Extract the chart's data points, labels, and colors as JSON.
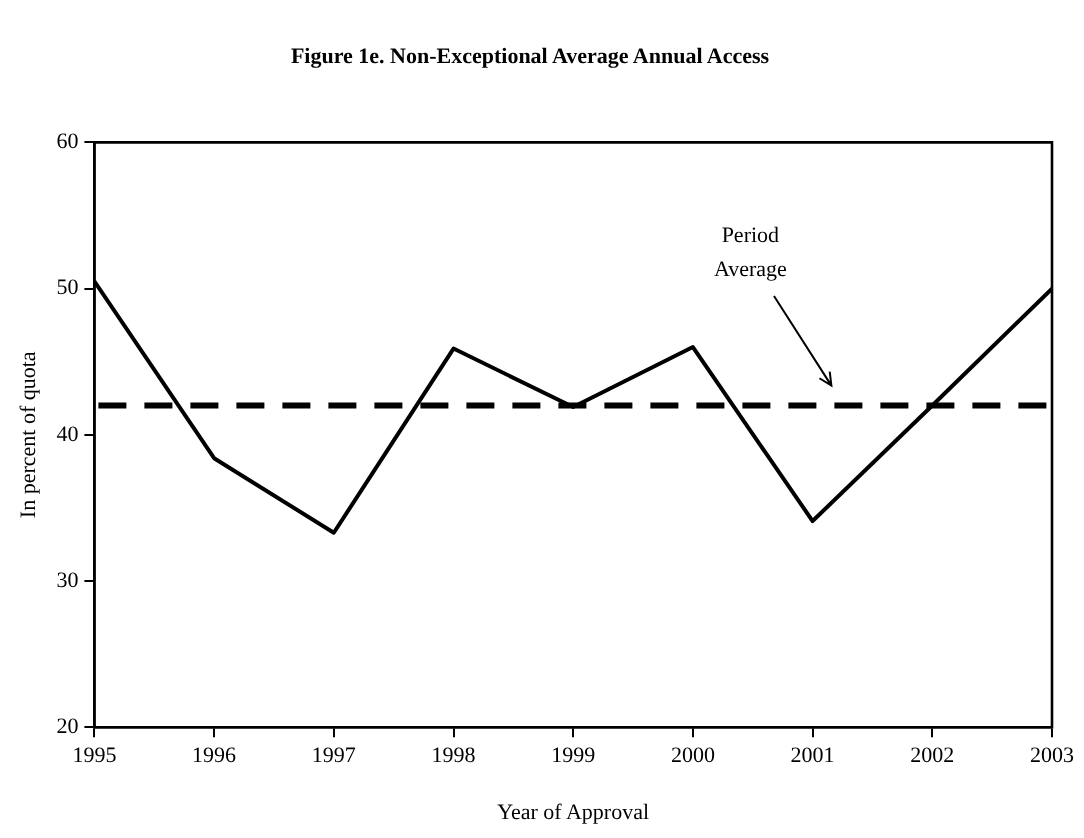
{
  "chart_data": {
    "type": "line",
    "title": "Figure 1e. Non-Exceptional Average Annual Access",
    "xlabel": "Year of Approval",
    "ylabel": "In percent of quota",
    "x": [
      1995,
      1996,
      1997,
      1998,
      1999,
      2000,
      2001,
      2002,
      2003
    ],
    "series": [
      {
        "color": "#000000",
        "values": [
          50.5,
          38.4,
          33.3,
          45.9,
          41.9,
          46.0,
          34.1,
          42.0,
          50.0
        ]
      }
    ],
    "xlim": [
      1995,
      2003
    ],
    "xticks": [
      1995,
      1996,
      1997,
      1998,
      1999,
      2000,
      2001,
      2002,
      2003
    ],
    "ylim": [
      20,
      60
    ],
    "yticks": [
      20,
      30,
      40,
      50,
      60
    ],
    "ref_lines": [
      {
        "axis": "y",
        "value": 42,
        "label": "Period Average",
        "color": "#000000",
        "line_style": "dashed"
      }
    ],
    "grid": false,
    "legend": false,
    "marker": "none",
    "line_style": "solid"
  }
}
